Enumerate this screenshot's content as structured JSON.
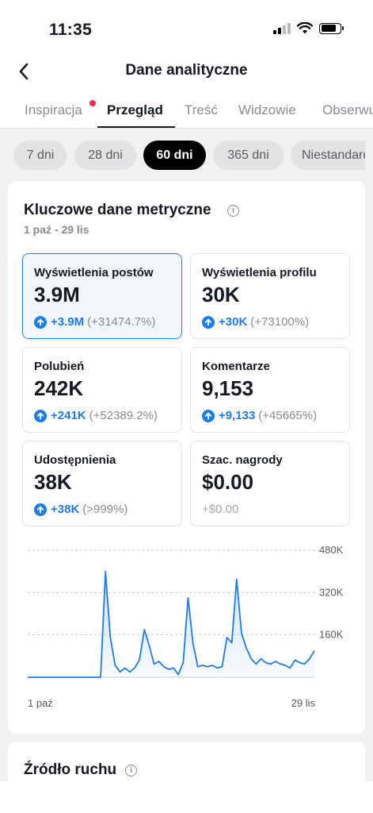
{
  "status": {
    "time": "11:35"
  },
  "header": {
    "title": "Dane analityczne"
  },
  "tabs": [
    {
      "label": "Inspiracja",
      "has_dot": true
    },
    {
      "label": "Przegląd",
      "active": true
    },
    {
      "label": "Treść"
    },
    {
      "label": "Widzowie"
    },
    {
      "label": "Obserwujący"
    }
  ],
  "filters": [
    {
      "label": "7 dni"
    },
    {
      "label": "28 dni"
    },
    {
      "label": "60 dni",
      "active": true
    },
    {
      "label": "365 dni"
    },
    {
      "label": "Niestandardowe"
    }
  ],
  "key_metrics": {
    "title": "Kluczowe dane metryczne",
    "date_range": "1 paź - 29 lis",
    "cards": [
      {
        "label": "Wyświetlenia postów",
        "value": "3.9M",
        "delta": "+3.9M",
        "delta_pct": "(+31474.7%)",
        "selected": true
      },
      {
        "label": "Wyświetlenia profilu",
        "value": "30K",
        "delta": "+30K",
        "delta_pct": "(+73100%)"
      },
      {
        "label": "Polubień",
        "value": "242K",
        "delta": "+241K",
        "delta_pct": "(+52389.2%)"
      },
      {
        "label": "Komentarze",
        "value": "9,153",
        "delta": "+9,133",
        "delta_pct": "(+45665%)"
      },
      {
        "label": "Udostępnienia",
        "value": "38K",
        "delta": "+38K",
        "delta_pct": "(>999%)"
      },
      {
        "label": "Szac. nagrody",
        "value": "$0.00",
        "delta": "+$0.00",
        "delta_pct": ""
      }
    ]
  },
  "chart_data": {
    "type": "area",
    "y_tick_labels": [
      "480K",
      "320K",
      "160K"
    ],
    "y_ticks": [
      480000,
      320000,
      160000
    ],
    "ylim": [
      0,
      480000
    ],
    "x_start_label": "1 paź",
    "x_end_label": "29 lis",
    "x": [
      "2023-10-01",
      "2023-10-02",
      "2023-10-03",
      "2023-10-04",
      "2023-10-05",
      "2023-10-06",
      "2023-10-07",
      "2023-10-08",
      "2023-10-09",
      "2023-10-10",
      "2023-10-11",
      "2023-10-12",
      "2023-10-13",
      "2023-10-14",
      "2023-10-15",
      "2023-10-16",
      "2023-10-17",
      "2023-10-18",
      "2023-10-19",
      "2023-10-20",
      "2023-10-21",
      "2023-10-22",
      "2023-10-23",
      "2023-10-24",
      "2023-10-25",
      "2023-10-26",
      "2023-10-27",
      "2023-10-28",
      "2023-10-29",
      "2023-10-30",
      "2023-10-31",
      "2023-11-01",
      "2023-11-02",
      "2023-11-03",
      "2023-11-04",
      "2023-11-05",
      "2023-11-06",
      "2023-11-07",
      "2023-11-08",
      "2023-11-09",
      "2023-11-10",
      "2023-11-11",
      "2023-11-12",
      "2023-11-13",
      "2023-11-14",
      "2023-11-15",
      "2023-11-16",
      "2023-11-17",
      "2023-11-18",
      "2023-11-19",
      "2023-11-20",
      "2023-11-21",
      "2023-11-22",
      "2023-11-23",
      "2023-11-24",
      "2023-11-25",
      "2023-11-26",
      "2023-11-27",
      "2023-11-28",
      "2023-11-29"
    ],
    "values": [
      0,
      0,
      0,
      0,
      0,
      0,
      0,
      0,
      0,
      0,
      0,
      0,
      0,
      0,
      0,
      0,
      400000,
      150000,
      45000,
      20000,
      35000,
      20000,
      35000,
      65000,
      180000,
      120000,
      50000,
      60000,
      40000,
      30000,
      35000,
      10000,
      55000,
      300000,
      130000,
      40000,
      45000,
      40000,
      45000,
      35000,
      40000,
      150000,
      130000,
      370000,
      165000,
      110000,
      70000,
      50000,
      70000,
      55000,
      50000,
      60000,
      50000,
      45000,
      35000,
      65000,
      55000,
      50000,
      70000,
      100000
    ],
    "area_color": "#1f7be6"
  },
  "traffic": {
    "title": "Źródło ruchu"
  }
}
